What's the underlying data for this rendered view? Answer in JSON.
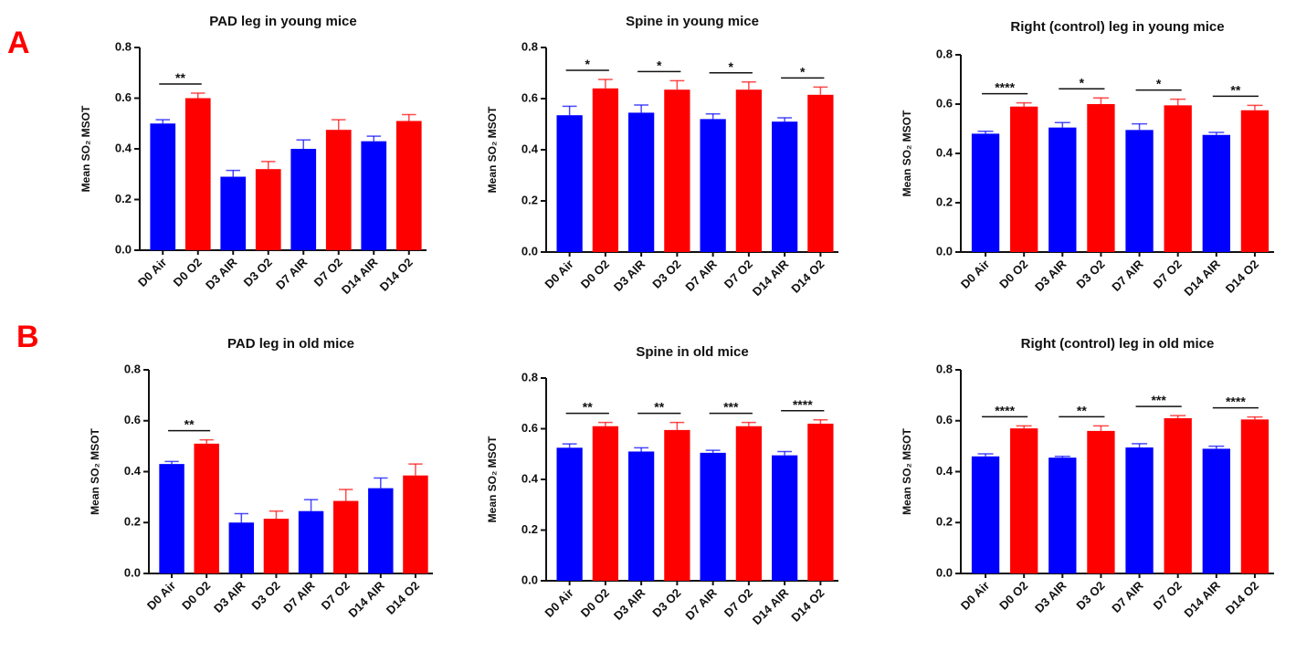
{
  "panel_labels": [
    "A",
    "B"
  ],
  "chart_data": [
    {
      "type": "bar",
      "title": "PAD leg in young mice",
      "ylabel": "Mean SO₂ MSOT",
      "categories": [
        "D0 Air",
        "D0 O2",
        "D3 AIR",
        "D3 O2",
        "D7 AIR",
        "D7 O2",
        "D14 AIR",
        "D14 O2"
      ],
      "values": [
        0.5,
        0.6,
        0.29,
        0.32,
        0.4,
        0.475,
        0.43,
        0.51
      ],
      "errors": [
        0.015,
        0.02,
        0.025,
        0.03,
        0.035,
        0.04,
        0.02,
        0.025
      ],
      "colors": [
        "#0000ff",
        "#ff0000",
        "#0000ff",
        "#ff0000",
        "#0000ff",
        "#ff0000",
        "#0000ff",
        "#ff0000"
      ],
      "ylim": [
        0,
        0.8
      ],
      "yticks": [
        {
          "value": 0,
          "label": "0.0"
        },
        0.2,
        0.4,
        0.6,
        0.8
      ],
      "annotations": [
        {
          "text": "**",
          "between": [
            "D0 Air",
            "D0 O2"
          ]
        }
      ]
    },
    {
      "type": "bar",
      "title": "Spine in young mice",
      "ylabel": "Mean SO₂ MSOT",
      "categories": [
        "D0 Air",
        "D0 O2",
        "D3 AIR",
        "D3 O2",
        "D7 AIR",
        "D7 O2",
        "D14 AIR",
        "D14 O2"
      ],
      "values": [
        0.535,
        0.64,
        0.545,
        0.635,
        0.52,
        0.635,
        0.51,
        0.615
      ],
      "errors": [
        0.035,
        0.035,
        0.03,
        0.035,
        0.02,
        0.03,
        0.015,
        0.03
      ],
      "colors": [
        "#0000ff",
        "#ff0000",
        "#0000ff",
        "#ff0000",
        "#0000ff",
        "#ff0000",
        "#0000ff",
        "#ff0000"
      ],
      "ylim": [
        0,
        0.8
      ],
      "yticks": [
        {
          "value": 0,
          "label": "0.0"
        },
        0.2,
        0.4,
        0.6,
        0.8
      ],
      "annotations": [
        {
          "text": "*",
          "between": [
            "D0 Air",
            "D0 O2"
          ]
        },
        {
          "text": "*",
          "between": [
            "D3 AIR",
            "D3 O2"
          ]
        },
        {
          "text": "*",
          "between": [
            "D7 AIR",
            "D7 O2"
          ]
        },
        {
          "text": "*",
          "between": [
            "D14 AIR",
            "D14 O2"
          ]
        }
      ]
    },
    {
      "type": "bar",
      "title": "Right (control) leg in young mice",
      "ylabel": "Mean SO₂ MSOT",
      "categories": [
        "D0 Air",
        "D0 O2",
        "D3 AIR",
        "D3 O2",
        "D7 AIR",
        "D7 O2",
        "D14 AIR",
        "D14 O2"
      ],
      "values": [
        0.48,
        0.59,
        0.505,
        0.6,
        0.495,
        0.595,
        0.475,
        0.575
      ],
      "errors": [
        0.01,
        0.015,
        0.02,
        0.025,
        0.025,
        0.025,
        0.01,
        0.02
      ],
      "colors": [
        "#0000ff",
        "#ff0000",
        "#0000ff",
        "#ff0000",
        "#0000ff",
        "#ff0000",
        "#0000ff",
        "#ff0000"
      ],
      "ylim": [
        0,
        0.8
      ],
      "yticks": [
        {
          "value": 0,
          "label": "0.0"
        },
        0.2,
        0.4,
        0.6,
        0.8
      ],
      "annotations": [
        {
          "text": "****",
          "between": [
            "D0 Air",
            "D0 O2"
          ]
        },
        {
          "text": "*",
          "between": [
            "D3 AIR",
            "D3 O2"
          ]
        },
        {
          "text": "*",
          "between": [
            "D7 AIR",
            "D7 O2"
          ]
        },
        {
          "text": "**",
          "between": [
            "D14 AIR",
            "D14 O2"
          ]
        }
      ]
    },
    {
      "type": "bar",
      "title": "PAD leg in old mice",
      "ylabel": "Mean SO₂ MSOT",
      "categories": [
        "D0 Air",
        "D0 O2",
        "D3 AIR",
        "D3 O2",
        "D7 AIR",
        "D7 O2",
        "D14 AIR",
        "D14 O2"
      ],
      "values": [
        0.43,
        0.51,
        0.2,
        0.215,
        0.245,
        0.285,
        0.335,
        0.385
      ],
      "errors": [
        0.01,
        0.015,
        0.035,
        0.03,
        0.045,
        0.045,
        0.04,
        0.045
      ],
      "colors": [
        "#0000ff",
        "#ff0000",
        "#0000ff",
        "#ff0000",
        "#0000ff",
        "#ff0000",
        "#0000ff",
        "#ff0000"
      ],
      "ylim": [
        0,
        0.8
      ],
      "yticks": [
        {
          "value": 0,
          "label": "0.0"
        },
        0.2,
        0.4,
        0.6,
        0.8
      ],
      "annotations": [
        {
          "text": "**",
          "between": [
            "D0 Air",
            "D0 O2"
          ]
        }
      ]
    },
    {
      "type": "bar",
      "title": "Spine in old mice",
      "ylabel": "Mean SO₂ MSOT",
      "categories": [
        "D0 Air",
        "D0 O2",
        "D3 AIR",
        "D3 O2",
        "D7 AIR",
        "D7 O2",
        "D14 AIR",
        "D14 O2"
      ],
      "values": [
        0.525,
        0.61,
        0.51,
        0.595,
        0.505,
        0.61,
        0.495,
        0.62
      ],
      "errors": [
        0.015,
        0.015,
        0.015,
        0.03,
        0.01,
        0.015,
        0.015,
        0.015
      ],
      "colors": [
        "#0000ff",
        "#ff0000",
        "#0000ff",
        "#ff0000",
        "#0000ff",
        "#ff0000",
        "#0000ff",
        "#ff0000"
      ],
      "ylim": [
        0,
        0.8
      ],
      "yticks": [
        {
          "value": 0,
          "label": "0.0"
        },
        0.2,
        0.4,
        0.6,
        0.8
      ],
      "annotations": [
        {
          "text": "**",
          "between": [
            "D0 Air",
            "D0 O2"
          ]
        },
        {
          "text": "**",
          "between": [
            "D3 AIR",
            "D3 O2"
          ]
        },
        {
          "text": "***",
          "between": [
            "D7 AIR",
            "D7 O2"
          ]
        },
        {
          "text": "****",
          "between": [
            "D14 AIR",
            "D14 O2"
          ]
        }
      ]
    },
    {
      "type": "bar",
      "title": "Right (control) leg in old mice",
      "ylabel": "Mean SO₂ MSOT",
      "categories": [
        "D0 Air",
        "D0 O2",
        "D3 AIR",
        "D3 O2",
        "D7 AIR",
        "D7 O2",
        "D14 AIR",
        "D14 O2"
      ],
      "values": [
        0.46,
        0.57,
        0.455,
        0.56,
        0.495,
        0.61,
        0.49,
        0.605
      ],
      "errors": [
        0.01,
        0.01,
        0.005,
        0.02,
        0.015,
        0.01,
        0.01,
        0.01
      ],
      "colors": [
        "#0000ff",
        "#ff0000",
        "#0000ff",
        "#ff0000",
        "#0000ff",
        "#ff0000",
        "#0000ff",
        "#ff0000"
      ],
      "ylim": [
        0,
        0.8
      ],
      "yticks": [
        {
          "value": 0,
          "label": "0.0"
        },
        0.2,
        0.4,
        0.6,
        0.8
      ],
      "annotations": [
        {
          "text": "****",
          "between": [
            "D0 Air",
            "D0 O2"
          ]
        },
        {
          "text": "**",
          "between": [
            "D3 AIR",
            "D3 O2"
          ]
        },
        {
          "text": "***",
          "between": [
            "D7 AIR",
            "D7 O2"
          ]
        },
        {
          "text": "****",
          "between": [
            "D14 AIR",
            "D14 O2"
          ]
        }
      ]
    }
  ]
}
